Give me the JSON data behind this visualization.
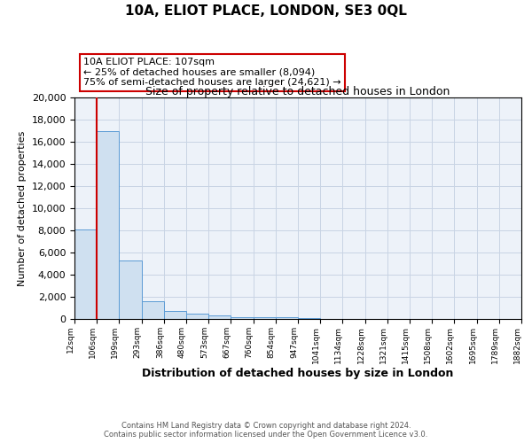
{
  "title": "10A, ELIOT PLACE, LONDON, SE3 0QL",
  "subtitle": "Size of property relative to detached houses in London",
  "xlabel": "Distribution of detached houses by size in London",
  "ylabel": "Number of detached properties",
  "categories": [
    "12sqm",
    "106sqm",
    "199sqm",
    "293sqm",
    "386sqm",
    "480sqm",
    "573sqm",
    "667sqm",
    "760sqm",
    "854sqm",
    "947sqm",
    "1041sqm",
    "1134sqm",
    "1228sqm",
    "1321sqm",
    "1415sqm",
    "1508sqm",
    "1602sqm",
    "1695sqm",
    "1789sqm",
    "1882sqm"
  ],
  "bar_values": [
    8094,
    17000,
    5250,
    1600,
    700,
    480,
    300,
    200,
    150,
    130,
    120,
    0,
    0,
    0,
    0,
    0,
    0,
    0,
    0,
    0
  ],
  "bar_color": "#cfe0f0",
  "bar_edge_color": "#5b9bd5",
  "red_line_x": 1,
  "ylim": [
    0,
    20000
  ],
  "yticks": [
    0,
    2000,
    4000,
    6000,
    8000,
    10000,
    12000,
    14000,
    16000,
    18000,
    20000
  ],
  "annotation_text": "10A ELIOT PLACE: 107sqm\n← 25% of detached houses are smaller (8,094)\n75% of semi-detached houses are larger (24,621) →",
  "annotation_box_color": "#ffffff",
  "annotation_box_edge": "#cc0000",
  "footer1": "Contains HM Land Registry data © Crown copyright and database right 2024.",
  "footer2": "Contains public sector information licensed under the Open Government Licence v3.0.",
  "bg_color": "#edf2f9",
  "grid_color": "#c8d4e4",
  "title_fontsize": 11,
  "subtitle_fontsize": 9
}
